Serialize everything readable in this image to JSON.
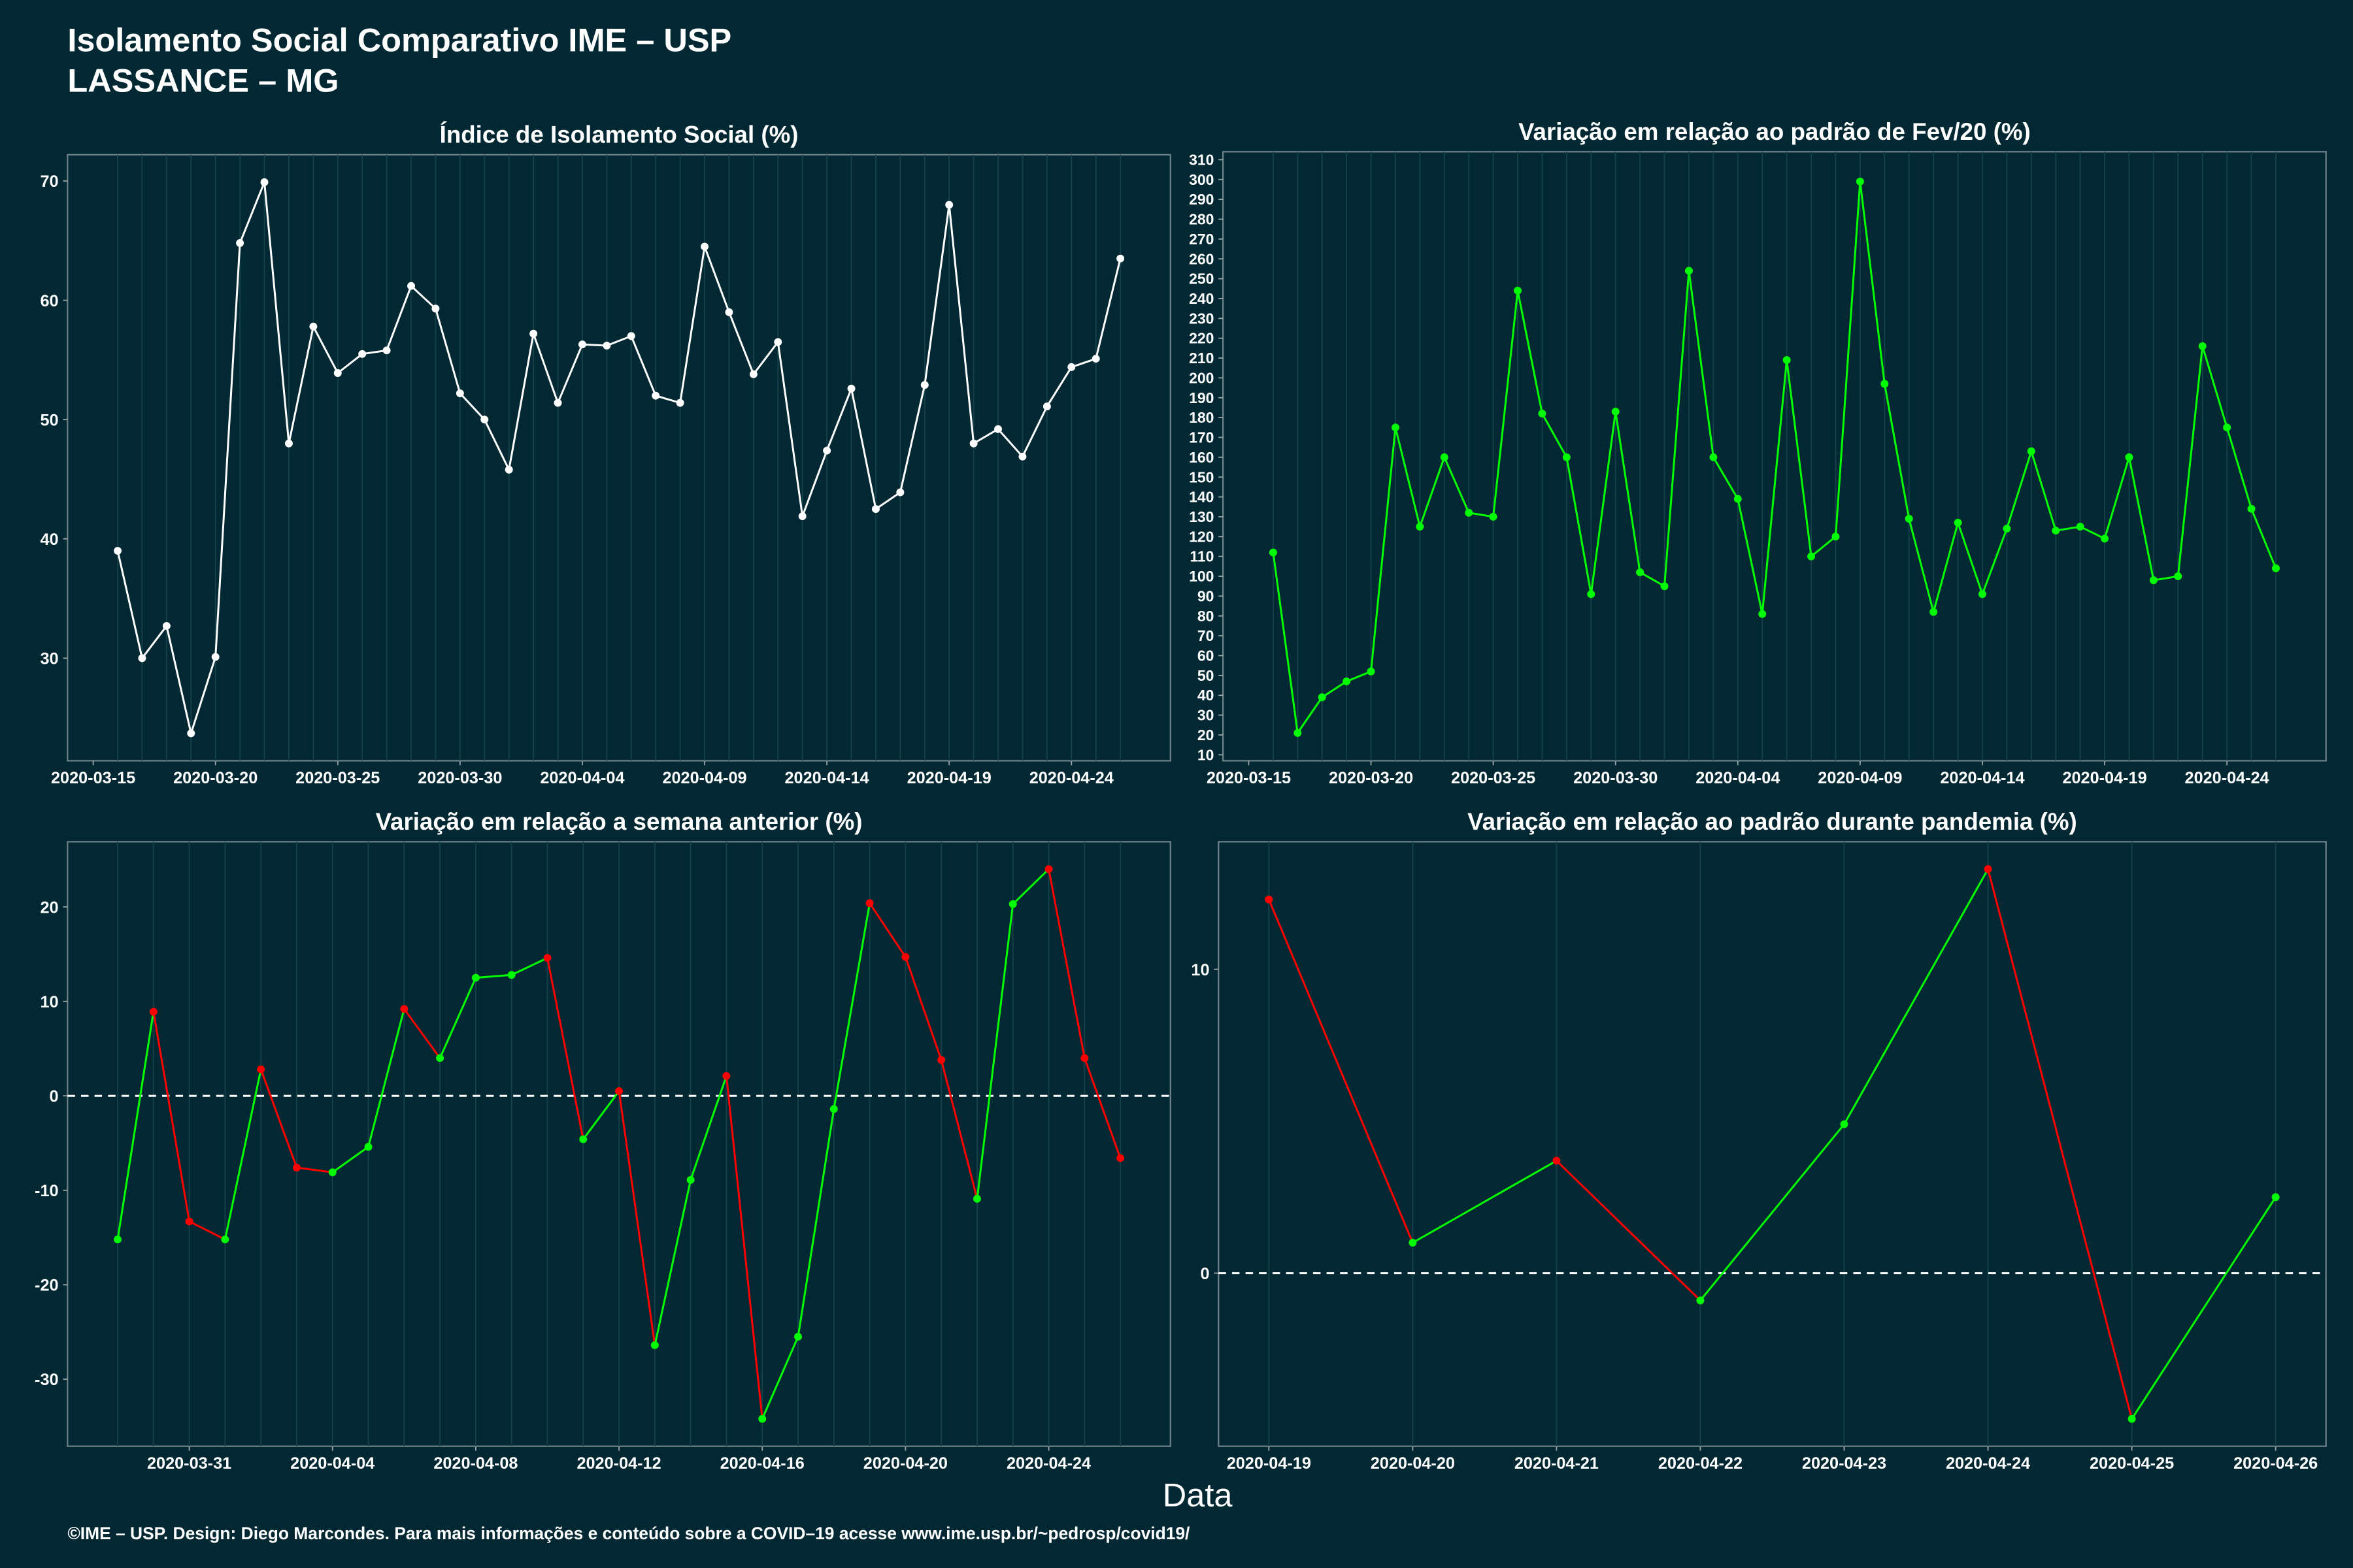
{
  "title": "Isolamento Social Comparativo IME – USP",
  "subtitle": "LASSANCE – MG",
  "x_label": "Data",
  "footer": "©IME – USP. Design: Diego Marcondes. Para mais informações e conteúdo sobre a COVID–19 acesse www.ime.usp.br/~pedrosp/covid19/",
  "chart_data": [
    {
      "type": "line",
      "title": "Índice de Isolamento Social (%)",
      "color": "#ffffff",
      "x": [
        "2020-03-16",
        "2020-03-17",
        "2020-03-18",
        "2020-03-19",
        "2020-03-20",
        "2020-03-21",
        "2020-03-22",
        "2020-03-23",
        "2020-03-24",
        "2020-03-25",
        "2020-03-26",
        "2020-03-27",
        "2020-03-28",
        "2020-03-29",
        "2020-03-30",
        "2020-03-31",
        "2020-04-01",
        "2020-04-02",
        "2020-04-03",
        "2020-04-04",
        "2020-04-05",
        "2020-04-06",
        "2020-04-07",
        "2020-04-08",
        "2020-04-09",
        "2020-04-10",
        "2020-04-11",
        "2020-04-12",
        "2020-04-13",
        "2020-04-14",
        "2020-04-15",
        "2020-04-16",
        "2020-04-17",
        "2020-04-18",
        "2020-04-19",
        "2020-04-20",
        "2020-04-21",
        "2020-04-22",
        "2020-04-23",
        "2020-04-24",
        "2020-04-25",
        "2020-04-26"
      ],
      "values": [
        39.0,
        30.0,
        32.7,
        23.7,
        30.1,
        64.8,
        69.9,
        48.0,
        57.8,
        53.9,
        55.5,
        55.8,
        61.2,
        59.3,
        52.2,
        50.0,
        45.8,
        57.2,
        51.4,
        56.3,
        56.2,
        57.0,
        52.0,
        51.4,
        64.5,
        59.0,
        53.8,
        56.5,
        41.9,
        47.4,
        52.6,
        42.5,
        43.9,
        52.9,
        68.0,
        48.0,
        49.2,
        46.9,
        51.1,
        54.4,
        55.1,
        63.5
      ],
      "xticks": [
        "2020-03-15",
        "2020-03-20",
        "2020-03-25",
        "2020-03-30",
        "2020-04-04",
        "2020-04-09",
        "2020-04-14",
        "2020-04-19",
        "2020-04-24"
      ],
      "ylim": [
        21.4,
        72.2
      ],
      "yticks": [
        30,
        40,
        50,
        60,
        70
      ]
    },
    {
      "type": "line",
      "title": "Variação em relação ao padrão de Fev/20 (%)",
      "color": "#00ff00",
      "x": [
        "2020-03-16",
        "2020-03-17",
        "2020-03-18",
        "2020-03-19",
        "2020-03-20",
        "2020-03-21",
        "2020-03-22",
        "2020-03-23",
        "2020-03-24",
        "2020-03-25",
        "2020-03-26",
        "2020-03-27",
        "2020-03-28",
        "2020-03-29",
        "2020-03-30",
        "2020-03-31",
        "2020-04-01",
        "2020-04-02",
        "2020-04-03",
        "2020-04-04",
        "2020-04-05",
        "2020-04-06",
        "2020-04-07",
        "2020-04-08",
        "2020-04-09",
        "2020-04-10",
        "2020-04-11",
        "2020-04-12",
        "2020-04-13",
        "2020-04-14",
        "2020-04-15",
        "2020-04-16",
        "2020-04-17",
        "2020-04-18",
        "2020-04-19",
        "2020-04-20",
        "2020-04-21",
        "2020-04-22",
        "2020-04-23",
        "2020-04-24",
        "2020-04-25",
        "2020-04-26"
      ],
      "values": [
        112,
        21,
        39,
        47,
        52,
        175,
        125,
        160,
        132,
        130,
        244,
        182,
        160,
        91,
        183,
        102,
        95,
        254,
        160,
        139,
        81,
        209,
        110,
        120,
        299,
        197,
        129,
        82,
        127,
        91,
        124,
        163,
        123,
        125,
        119,
        160,
        98,
        100,
        216,
        175,
        134,
        104
      ],
      "xticks": [
        "2020-03-15",
        "2020-03-20",
        "2020-03-25",
        "2020-03-30",
        "2020-04-04",
        "2020-04-09",
        "2020-04-14",
        "2020-04-19",
        "2020-04-24"
      ],
      "ylim": [
        7,
        314
      ],
      "yticks": [
        10,
        20,
        30,
        40,
        50,
        60,
        70,
        80,
        90,
        100,
        110,
        120,
        130,
        140,
        150,
        160,
        170,
        180,
        190,
        200,
        210,
        220,
        230,
        240,
        250,
        260,
        270,
        280,
        290,
        300,
        310
      ]
    },
    {
      "type": "line",
      "title": "Variação em relação a semana anterior (%)",
      "up_color": "#00ff00",
      "down_color": "#ff0000",
      "reference_line": 0,
      "x": [
        "2020-03-29",
        "2020-03-30",
        "2020-03-31",
        "2020-04-01",
        "2020-04-02",
        "2020-04-03",
        "2020-04-04",
        "2020-04-05",
        "2020-04-06",
        "2020-04-07",
        "2020-04-08",
        "2020-04-09",
        "2020-04-10",
        "2020-04-11",
        "2020-04-12",
        "2020-04-13",
        "2020-04-14",
        "2020-04-15",
        "2020-04-16",
        "2020-04-17",
        "2020-04-18",
        "2020-04-19",
        "2020-04-20",
        "2020-04-21",
        "2020-04-22",
        "2020-04-23",
        "2020-04-24",
        "2020-04-25",
        "2020-04-26"
      ],
      "values": [
        -15.2,
        8.9,
        -13.3,
        -15.2,
        2.8,
        -7.6,
        -8.1,
        -5.4,
        9.2,
        4.0,
        12.5,
        12.8,
        14.6,
        -4.6,
        0.5,
        -26.4,
        -8.9,
        2.1,
        -34.2,
        -25.5,
        -1.4,
        20.4,
        14.7,
        3.8,
        -10.9,
        20.3,
        24.0,
        4.0,
        -6.6
      ],
      "xticks": [
        "2020-03-31",
        "2020-04-04",
        "2020-04-08",
        "2020-04-12",
        "2020-04-16",
        "2020-04-20",
        "2020-04-24"
      ],
      "ylim": [
        -37.1,
        26.9
      ],
      "yticks": [
        -30,
        -20,
        -10,
        0,
        10,
        20
      ]
    },
    {
      "type": "line",
      "title": "Variação em relação ao padrão durante pandemia (%)",
      "up_color": "#00ff00",
      "down_color": "#ff0000",
      "reference_line": 0,
      "x": [
        "2020-04-19",
        "2020-04-20",
        "2020-04-21",
        "2020-04-22",
        "2020-04-23",
        "2020-04-24",
        "2020-04-25",
        "2020-04-26"
      ],
      "values": [
        12.3,
        1.0,
        3.7,
        -0.9,
        4.9,
        13.3,
        -4.8,
        2.5
      ],
      "xticks": [
        "2020-04-19",
        "2020-04-20",
        "2020-04-21",
        "2020-04-22",
        "2020-04-23",
        "2020-04-24",
        "2020-04-25",
        "2020-04-26"
      ],
      "ylim": [
        -5.7,
        14.2
      ],
      "yticks": [
        0,
        10
      ]
    }
  ]
}
